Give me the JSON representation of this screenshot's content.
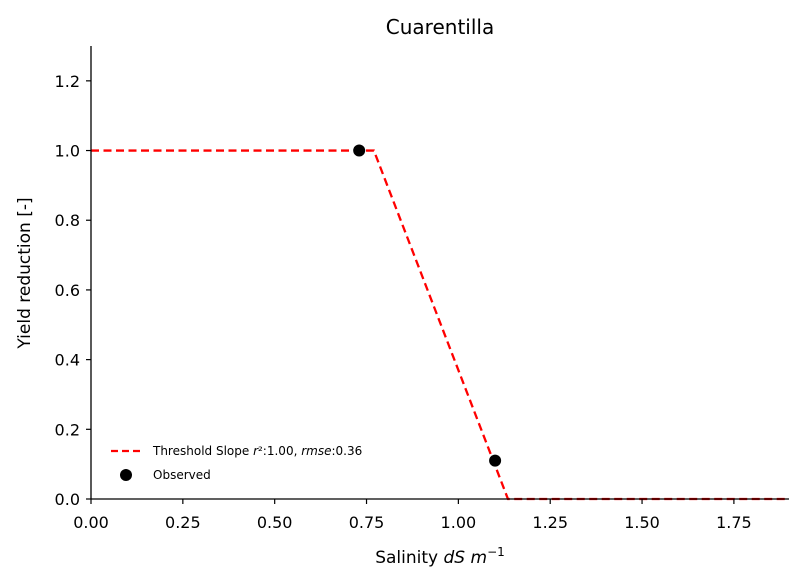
{
  "chart_data": {
    "type": "line",
    "title": "Cuarentilla",
    "xlabel_prefix": "Salinity ",
    "xlabel_math": "dS m",
    "xlabel_sup": "−1",
    "ylabel": "Yield reduction [-]",
    "xlim": [
      0.0,
      1.9
    ],
    "ylim": [
      0.0,
      1.3
    ],
    "xticks": [
      0.0,
      0.25,
      0.5,
      0.75,
      1.0,
      1.25,
      1.5,
      1.75
    ],
    "xtick_labels": [
      "0.00",
      "0.25",
      "0.50",
      "0.75",
      "1.00",
      "1.25",
      "1.50",
      "1.75"
    ],
    "yticks": [
      0.0,
      0.2,
      0.4,
      0.6,
      0.8,
      1.0,
      1.2
    ],
    "ytick_labels": [
      "0.0",
      "0.2",
      "0.4",
      "0.6",
      "0.8",
      "1.0",
      "1.2"
    ],
    "grid": false,
    "legend_position": "lower-left",
    "series": [
      {
        "name": "Threshold Slope r²:1.00, rmse:0.36",
        "legend_parts": [
          "Threshold Slope ",
          "r",
          "²:1.00, ",
          "rmse",
          ":0.36"
        ],
        "kind": "dashed-line",
        "color": "#ff0000",
        "x": [
          0.0,
          0.77,
          1.135,
          1.9
        ],
        "y": [
          1.0,
          1.0,
          0.0,
          0.0
        ]
      },
      {
        "name": "Observed",
        "kind": "scatter",
        "color": "#000000",
        "x": [
          0.73,
          1.1
        ],
        "y": [
          1.0,
          0.11
        ]
      }
    ]
  }
}
